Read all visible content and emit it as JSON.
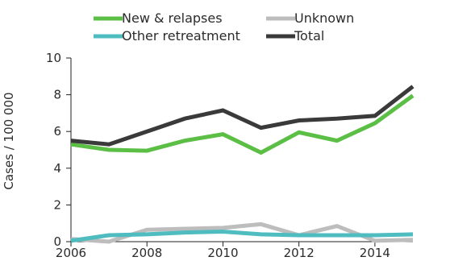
{
  "chart_data": {
    "type": "line",
    "title": "",
    "xlabel": "",
    "ylabel": "Cases / 100 000",
    "x": [
      2006,
      2007,
      2008,
      2009,
      2010,
      2011,
      2012,
      2013,
      2014,
      2015
    ],
    "xticks": [
      "2006",
      "2008",
      "2010",
      "2012",
      "2014"
    ],
    "yticks": [
      "0",
      "2",
      "4",
      "6",
      "8",
      "10"
    ],
    "xlim": [
      2006,
      2015
    ],
    "ylim": [
      0,
      10
    ],
    "grid": false,
    "legend_position": "top",
    "series": [
      {
        "name": "New & relapses",
        "color": "#5cbf45",
        "values": [
          5.3,
          5.0,
          4.95,
          5.5,
          5.85,
          4.85,
          5.95,
          5.5,
          6.45,
          7.95
        ]
      },
      {
        "name": "Unknown",
        "color": "#bdbdbd",
        "values": [
          0.15,
          0.0,
          0.65,
          0.7,
          0.75,
          0.95,
          0.35,
          0.85,
          0.05,
          0.1
        ]
      },
      {
        "name": "Other retreatment",
        "color": "#4fbcbf",
        "values": [
          0.05,
          0.35,
          0.4,
          0.5,
          0.55,
          0.4,
          0.35,
          0.35,
          0.35,
          0.4
        ]
      },
      {
        "name": "Total",
        "color": "#3a3a3a",
        "values": [
          5.5,
          5.3,
          6.0,
          6.7,
          7.15,
          6.2,
          6.6,
          6.7,
          6.85,
          8.45
        ]
      }
    ]
  }
}
